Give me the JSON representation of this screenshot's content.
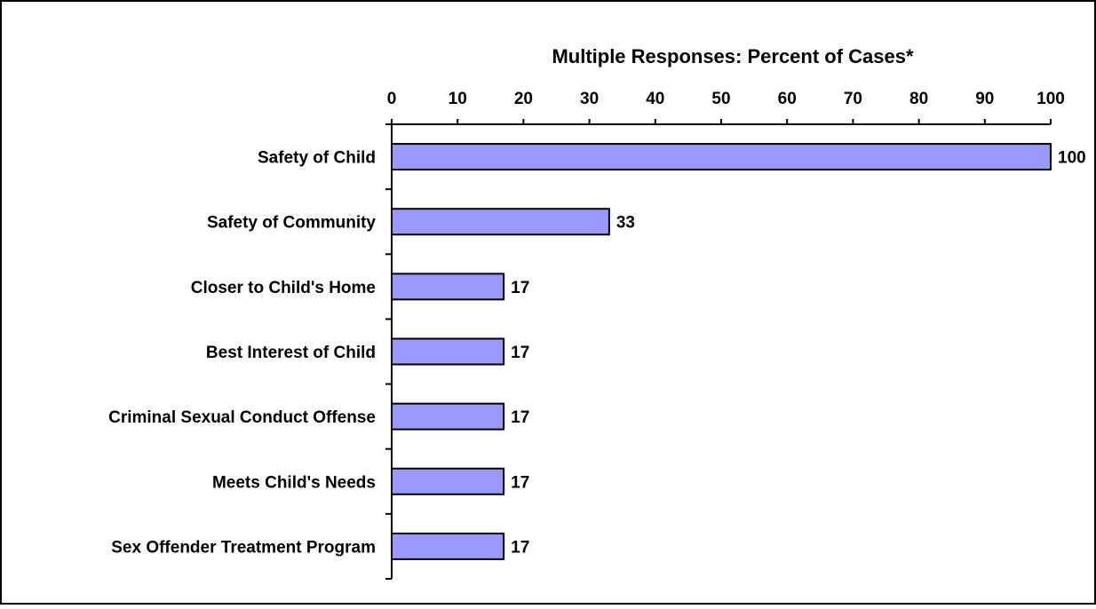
{
  "chart_data": {
    "type": "bar",
    "orientation": "horizontal",
    "title": "Multiple Responses:  Percent of Cases*",
    "xlabel": "",
    "ylabel": "",
    "xlim": [
      0,
      100
    ],
    "x_ticks": [
      "0",
      "10",
      "20",
      "30",
      "40",
      "50",
      "60",
      "70",
      "80",
      "90",
      "100"
    ],
    "x_axis_position": "top",
    "categories": [
      "Safety of Child",
      "Safety of Community",
      "Closer to Child's Home",
      "Best Interest of Child",
      "Criminal Sexual Conduct Offense",
      "Meets Child's Needs",
      "Sex Offender Treatment Program"
    ],
    "values": [
      100,
      33,
      17,
      17,
      17,
      17,
      17
    ],
    "data_labels": [
      "100",
      "33",
      "17",
      "17",
      "17",
      "17",
      "17"
    ],
    "bar_color": "#9999ff",
    "grid": false,
    "legend": "none"
  }
}
